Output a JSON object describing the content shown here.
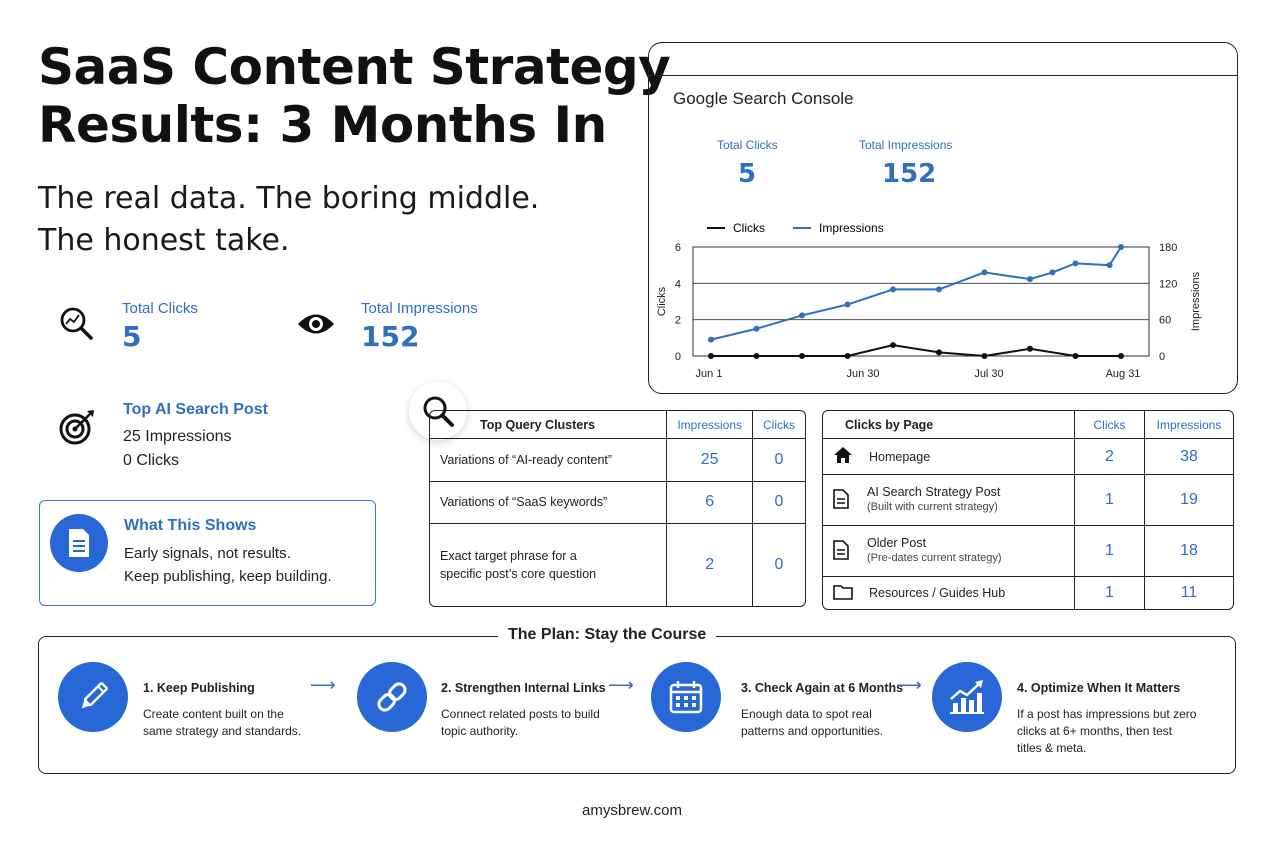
{
  "header": {
    "title_line1": "SaaS Content Strategy",
    "title_line2": "Results: 3 Months In",
    "subtitle_line1": "The real data. The boring middle.",
    "subtitle_line2": "The honest take."
  },
  "stats": {
    "clicks_label": "Total Clicks",
    "clicks_value": "5",
    "impressions_label": "Total Impressions",
    "impressions_value": "152"
  },
  "top_post": {
    "label": "Top AI Search Post",
    "impressions": "25 Impressions",
    "clicks": "0 Clicks"
  },
  "what_shows": {
    "title": "What This Shows",
    "line1": "Early signals, not results.",
    "line2": "Keep publishing, keep building."
  },
  "gsc": {
    "title": "Google Search Console",
    "clicks_label": "Total Clicks",
    "clicks_value": "5",
    "impressions_label": "Total Impressions",
    "impressions_value": "152"
  },
  "chart_data": {
    "type": "line",
    "x_ticks": [
      "Jun 1",
      "Jun 30",
      "Jul 30",
      "Aug 31"
    ],
    "ylabel": "Clicks",
    "y2label": "Impressions",
    "ylim": [
      0,
      6
    ],
    "y2lim": [
      0,
      180
    ],
    "y_ticks": [
      "0",
      "2",
      "4",
      "6"
    ],
    "y2_ticks": [
      "0",
      "60",
      "120",
      "180"
    ],
    "legend_position": "top-left",
    "grid": true,
    "series": [
      {
        "name": "Clicks",
        "color": "#111111",
        "axis": "left",
        "x": [
          0,
          0.111,
          0.222,
          0.333,
          0.444,
          0.556,
          0.667,
          0.778,
          0.889,
          1.0
        ],
        "values": [
          0,
          0,
          0,
          0,
          0.6,
          0.2,
          0,
          0.4,
          0,
          0
        ]
      },
      {
        "name": "Impressions",
        "color": "#2e6fc0",
        "axis": "right",
        "x": [
          0,
          0.111,
          0.222,
          0.333,
          0.444,
          0.556,
          0.667,
          0.778,
          0.833,
          0.889,
          0.972,
          1.0
        ],
        "values": [
          27,
          45,
          67,
          85,
          110,
          110,
          138,
          127,
          138,
          153,
          150,
          180
        ]
      }
    ]
  },
  "query_table": {
    "headers": [
      "Top Query Clusters",
      "Impressions",
      "Clicks"
    ],
    "rows": [
      {
        "query": "Variations of “AI-ready content”",
        "query2": "",
        "impressions": "25",
        "clicks": "0"
      },
      {
        "query": "Variations of “SaaS keywords”",
        "query2": "",
        "impressions": "6",
        "clicks": "0"
      },
      {
        "query": "Exact target phrase for a",
        "query2": "specific post’s core question",
        "impressions": "2",
        "clicks": "0"
      }
    ]
  },
  "page_table": {
    "headers": [
      "Clicks by Page",
      "Clicks",
      "Impressions"
    ],
    "rows": [
      {
        "icon": "home-icon",
        "page": "Homepage",
        "note": "",
        "clicks": "2",
        "impressions": "38"
      },
      {
        "icon": "document-icon",
        "page": "AI Search Strategy Post",
        "note": "(Built with current strategy)",
        "clicks": "1",
        "impressions": "19"
      },
      {
        "icon": "document-icon",
        "page": "Older Post",
        "note": "(Pre-dates current strategy)",
        "clicks": "1",
        "impressions": "18"
      },
      {
        "icon": "folder-icon",
        "page": "Resources / Guides Hub",
        "note": "",
        "clicks": "1",
        "impressions": "11"
      }
    ]
  },
  "plan": {
    "title": "The Plan: Stay the Course",
    "steps": [
      {
        "icon": "pencil-icon",
        "title": "1.  Keep Publishing",
        "d1": "Create content built on the",
        "d2": "same strategy and standards.",
        "d3": ""
      },
      {
        "icon": "link-icon",
        "title": "2. Strengthen Internal Links",
        "d1": "Connect related posts to build",
        "d2": "topic authority.",
        "d3": ""
      },
      {
        "icon": "calendar-icon",
        "title": "3. Check Again at 6 Months",
        "d1": "Enough data to spot real",
        "d2": "patterns and opportunities.",
        "d3": ""
      },
      {
        "icon": "growth-chart-icon",
        "title": "4. Optimize When It Matters",
        "d1": "If a post has impressions but zero",
        "d2": "clicks at 6+ months, then test",
        "d3": "titles & meta."
      }
    ]
  },
  "footer": {
    "site": "amysbrew.com"
  }
}
